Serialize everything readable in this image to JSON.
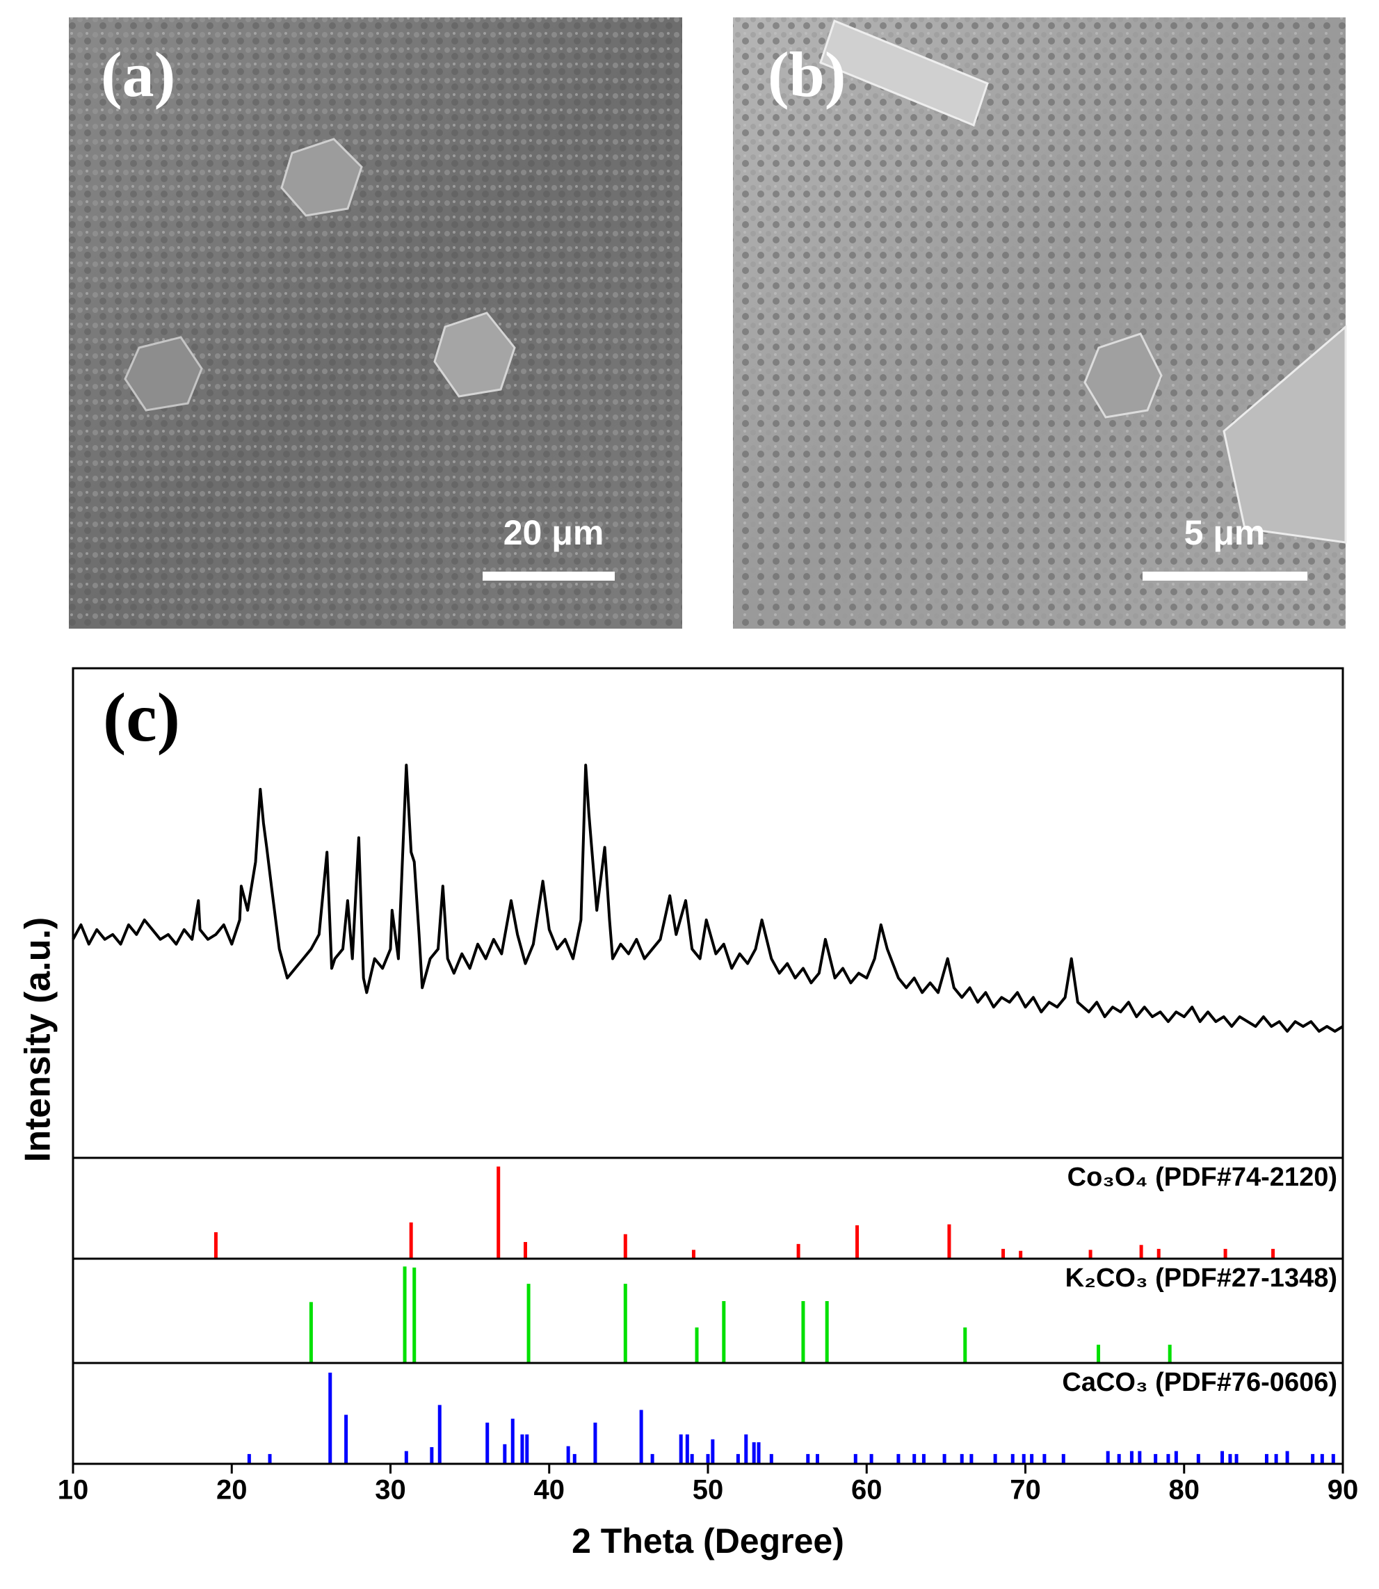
{
  "panels": [
    {
      "label": "(a)",
      "scale_bar": "20 μm"
    },
    {
      "label": "(b)",
      "scale_bar": "5 μm"
    }
  ],
  "chart_data": {
    "type": "line",
    "label": "(c)",
    "x_label": "2 Theta (Degree)",
    "y_label": "Intensity (a.u.)",
    "xlim": [
      10,
      90
    ],
    "xticks": [
      10,
      20,
      30,
      40,
      50,
      60,
      70,
      80,
      90
    ],
    "ylim": [
      0,
      100
    ],
    "series": [
      {
        "color": "#000000",
        "x": [
          10,
          10.5,
          11,
          11.5,
          12,
          12.5,
          13,
          13.5,
          14,
          14.5,
          15,
          15.5,
          16,
          16.5,
          17,
          17.5,
          17.9,
          18,
          18.5,
          19,
          19.5,
          20,
          20.5,
          20.6,
          21,
          21.5,
          21.8,
          22,
          22.2,
          22.5,
          23,
          23.5,
          24,
          24.5,
          25,
          25.5,
          26,
          26.3,
          26.5,
          27,
          27.3,
          27.6,
          28,
          28.3,
          28.5,
          29,
          29.5,
          30,
          30.1,
          30.5,
          31,
          31.3,
          31.5,
          31.8,
          32,
          32.5,
          33,
          33.3,
          33.6,
          34,
          34.5,
          35,
          35.5,
          36,
          36.5,
          37,
          37.6,
          38,
          38.5,
          39,
          39.6,
          40,
          40.5,
          41,
          41.5,
          42,
          42.3,
          42.5,
          43,
          43.5,
          43.8,
          44,
          44.5,
          45,
          45.5,
          46,
          46.5,
          47,
          47.6,
          48,
          48.6,
          49,
          49.5,
          49.9,
          50.5,
          51,
          51.5,
          52,
          52.5,
          53,
          53.4,
          54,
          54.5,
          55,
          55.5,
          56,
          56.5,
          57,
          57.4,
          58,
          58.5,
          59,
          59.5,
          60,
          60.5,
          60.9,
          61.3,
          62,
          62.5,
          63,
          63.5,
          64,
          64.5,
          65.1,
          65.5,
          66,
          66.5,
          67,
          67.5,
          68,
          68.5,
          69,
          69.5,
          70,
          70.5,
          71,
          71.5,
          72,
          72.5,
          72.9,
          73.3,
          74,
          74.5,
          75,
          75.5,
          76,
          76.5,
          77,
          77.5,
          78,
          78.5,
          79,
          79.5,
          80,
          80.5,
          81,
          81.5,
          82,
          82.5,
          83,
          83.5,
          84,
          84.5,
          85,
          85.5,
          86,
          86.5,
          87,
          87.5,
          88,
          88.5,
          89,
          89.5,
          90
        ],
        "values": [
          44,
          47,
          43,
          46,
          44,
          45,
          43,
          47,
          45,
          48,
          46,
          44,
          45,
          43,
          46,
          44,
          52,
          46,
          44,
          45,
          47,
          43,
          48,
          55,
          50,
          60,
          75,
          68,
          63,
          55,
          42,
          36,
          38,
          40,
          42,
          45,
          62,
          38,
          40,
          42,
          52,
          40,
          65,
          36,
          33,
          40,
          38,
          42,
          50,
          40,
          80,
          62,
          60,
          45,
          34,
          40,
          42,
          55,
          40,
          37,
          41,
          38,
          43,
          40,
          44,
          41,
          52,
          45,
          39,
          43,
          56,
          46,
          42,
          44,
          40,
          48,
          80,
          70,
          50,
          63,
          48,
          40,
          43,
          41,
          44,
          40,
          42,
          44,
          53,
          45,
          52,
          42,
          40,
          48,
          41,
          43,
          38,
          41,
          39,
          42,
          48,
          40,
          37,
          39,
          36,
          38,
          35,
          37,
          44,
          36,
          38,
          35,
          37,
          36,
          40,
          47,
          42,
          36,
          34,
          36,
          33,
          35,
          33,
          40,
          34,
          32,
          34,
          31,
          33,
          30,
          32,
          31,
          33,
          30,
          32,
          29,
          31,
          30,
          32,
          40,
          31,
          29,
          31,
          28,
          30,
          29,
          31,
          28,
          30,
          28,
          29,
          27,
          29,
          28,
          30,
          27,
          29,
          27,
          28,
          26,
          28,
          27,
          26,
          28,
          26,
          27,
          25,
          27,
          26,
          27,
          25,
          26,
          25,
          26
        ]
      }
    ],
    "references": [
      {
        "name": "Co₃O₄ (PDF#74-2120)",
        "color": "#ff0000",
        "ylim": [
          0,
          100
        ],
        "x": [
          19.0,
          31.3,
          36.8,
          38.5,
          44.8,
          49.1,
          55.7,
          59.4,
          65.2,
          68.6,
          69.7,
          74.1,
          77.3,
          78.4,
          82.6,
          85.6
        ],
        "values": [
          27,
          37,
          94,
          17,
          25,
          9,
          15,
          34,
          35,
          10,
          8,
          9,
          14,
          10,
          10,
          10
        ]
      },
      {
        "name": "K₂CO₃ (PDF#27-1348)",
        "color": "#00e000",
        "ylim": [
          0,
          100
        ],
        "x": [
          25.0,
          30.9,
          31.5,
          38.7,
          44.8,
          49.3,
          51.0,
          56.0,
          57.5,
          66.2,
          74.6,
          79.1
        ],
        "values": [
          60,
          95,
          94,
          78,
          78,
          35,
          61,
          61,
          61,
          35,
          18,
          18
        ]
      },
      {
        "name": "CaCO₃ (PDF#76-0606)",
        "color": "#0000ff",
        "ylim": [
          0,
          100
        ],
        "x": [
          21.1,
          22.4,
          26.2,
          27.2,
          31.0,
          32.6,
          33.1,
          36.1,
          37.2,
          37.7,
          38.3,
          38.6,
          41.2,
          41.6,
          42.9,
          45.8,
          46.5,
          48.3,
          48.7,
          49.0,
          50.0,
          50.3,
          51.9,
          52.4,
          52.9,
          53.2,
          54.0,
          56.3,
          56.9,
          59.3,
          60.3,
          62.0,
          63.0,
          63.6,
          64.9,
          66.0,
          66.6,
          68.1,
          69.2,
          69.9,
          70.4,
          71.2,
          72.4,
          75.2,
          75.9,
          76.7,
          77.2,
          78.2,
          79.0,
          79.5,
          80.9,
          82.4,
          82.9,
          83.3,
          85.2,
          85.8,
          86.5,
          88.1,
          88.7,
          89.4
        ],
        "values": [
          10,
          10,
          93,
          50,
          13,
          17,
          60,
          42,
          20,
          46,
          30,
          30,
          18,
          10,
          42,
          55,
          10,
          30,
          30,
          10,
          10,
          25,
          10,
          30,
          22,
          22,
          10,
          10,
          10,
          10,
          10,
          10,
          10,
          10,
          10,
          10,
          10,
          10,
          10,
          10,
          10,
          10,
          10,
          13,
          10,
          13,
          13,
          10,
          10,
          13,
          10,
          13,
          10,
          10,
          10,
          10,
          13,
          10,
          10,
          10
        ]
      }
    ]
  }
}
